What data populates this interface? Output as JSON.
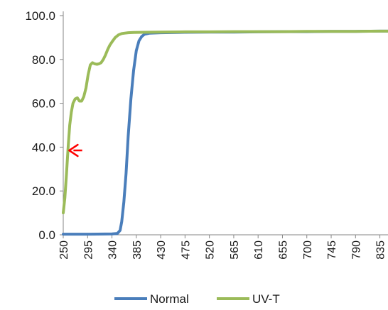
{
  "chart_data": {
    "type": "line",
    "title": "",
    "xlabel": "",
    "ylabel": "",
    "xlim": [
      250,
      850
    ],
    "ylim": [
      0,
      100
    ],
    "grid": false,
    "legend_position": "bottom",
    "x_ticks": [
      250,
      295,
      340,
      385,
      430,
      475,
      520,
      565,
      610,
      655,
      700,
      745,
      790,
      835
    ],
    "y_ticks": [
      0,
      20,
      40,
      60,
      80,
      100
    ],
    "y_tick_labels": [
      "0.0",
      "20.0",
      "40.0",
      "60.0",
      "80.0",
      "100.0"
    ],
    "x_tick_labels": [
      "250",
      "295",
      "340",
      "385",
      "430",
      "475",
      "520",
      "565",
      "610",
      "655",
      "700",
      "745",
      "790",
      "835"
    ],
    "series": [
      {
        "name": "Normal",
        "color": "#4a7ebb",
        "x": [
          250,
          300,
          340,
          350,
          355,
          358,
          362,
          366,
          370,
          375,
          380,
          385,
          390,
          395,
          400,
          410,
          430,
          475,
          520,
          565,
          610,
          655,
          700,
          745,
          790,
          835,
          850
        ],
        "y": [
          0.3,
          0.3,
          0.4,
          0.6,
          2,
          6,
          15,
          28,
          45,
          62,
          75,
          84,
          88.5,
          90.5,
          91.5,
          92,
          92.2,
          92.4,
          92.5,
          92.5,
          92.6,
          92.7,
          92.7,
          92.8,
          92.8,
          92.9,
          92.9
        ]
      },
      {
        "name": "UV-T",
        "color": "#9bbb59",
        "x": [
          250,
          253,
          256,
          259,
          262,
          265,
          268,
          272,
          276,
          280,
          284,
          288,
          292,
          296,
          300,
          304,
          308,
          312,
          316,
          320,
          324,
          328,
          332,
          336,
          340,
          346,
          352,
          358,
          364,
          370,
          380,
          400,
          430,
          475,
          520,
          565,
          610,
          655,
          700,
          745,
          790,
          835,
          850
        ],
        "y": [
          10,
          17,
          28,
          40,
          50,
          56,
          60,
          62,
          62.5,
          61,
          61,
          63,
          67,
          73,
          77.5,
          78.5,
          78,
          77.8,
          78,
          78.5,
          80,
          82,
          84.5,
          86.5,
          88,
          90,
          91.2,
          91.8,
          92,
          92.2,
          92.3,
          92.4,
          92.5,
          92.6,
          92.6,
          92.7,
          92.7,
          92.7,
          92.8,
          92.8,
          92.8,
          92.9,
          92.9
        ]
      }
    ],
    "annotations": [
      {
        "type": "arrow",
        "color": "#ff0000",
        "direction": "left",
        "from": [
          285,
          38.5
        ],
        "to": [
          261,
          38.5
        ]
      }
    ]
  }
}
